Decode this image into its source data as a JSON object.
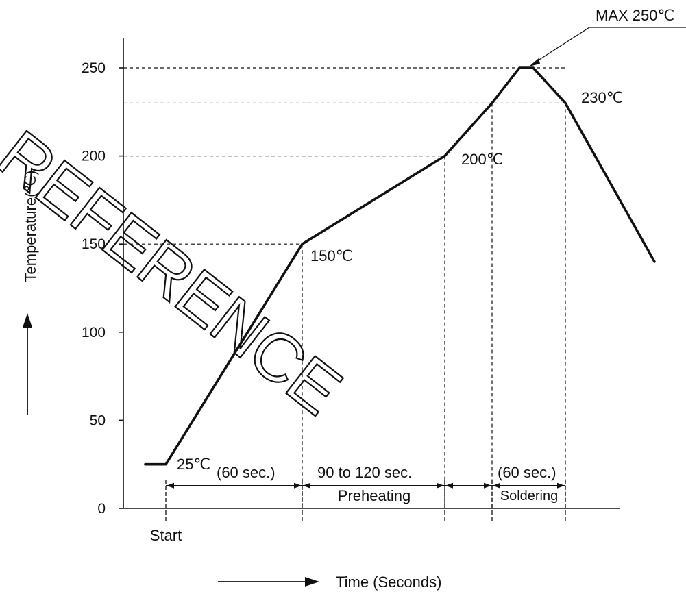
{
  "chart_data": {
    "type": "line",
    "title": "",
    "xlabel": "Time (Seconds)",
    "ylabel": "Temperature(℃)",
    "ylim": [
      0,
      270
    ],
    "yticks": [
      0,
      50,
      100,
      150,
      200,
      250
    ],
    "grid": false,
    "series": [
      {
        "x": [
          -30,
          0,
          60,
          150,
          180,
          200,
          210,
          230,
          290
        ],
        "y": [
          25,
          25,
          150,
          200,
          230,
          250,
          250,
          230,
          140
        ]
      }
    ],
    "x_markers": [
      0,
      60,
      150,
      180,
      230
    ],
    "labels": {
      "start": "Start",
      "t25": "25℃",
      "t150": "150℃",
      "t200": "200℃",
      "t230": "230℃",
      "max": "MAX 250℃",
      "seg1": "(60 sec.)",
      "seg2": "90 to 120 sec.",
      "seg3": "(60 sec.)",
      "preheating": "Preheating",
      "soldering": "Soldering"
    },
    "watermark": "REFERENCE"
  }
}
